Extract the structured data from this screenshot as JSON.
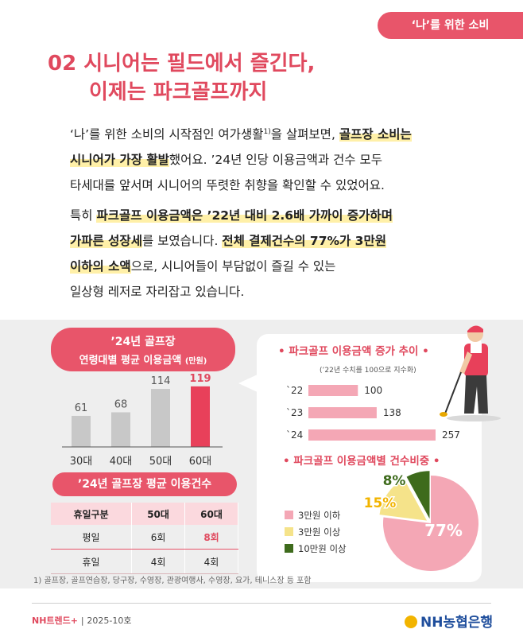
{
  "tag": "‘나’를 위한 소비",
  "title": {
    "line1": "02 시니어는 필드에서 즐긴다,",
    "line2": "이제는 파크골프까지"
  },
  "para1": {
    "a": "‘나’를 위한 소비의 시작점인 여가생활",
    "sup": "1)",
    "b": "을 살펴보면, ",
    "hl1": "골프장 소비는",
    "hl2": "시니어가 가장 활발",
    "c": "했어요. ’24년 인당 이용금액과 건수 모두",
    "d": "타세대를 앞서며 시니어의 뚜렷한 취향을 확인할 수 있었어요."
  },
  "para2": {
    "a": "특히 ",
    "hl1": "파크골프 이용금액은 ’22년 대비 2.6배 가까이 증가하며",
    "hl2": "가파른 성장세",
    "b": "를 보였습니다. ",
    "hl3": "전체 결제건수의 77%가 3만원",
    "hl4": "이하의 소액",
    "c": "으로, 시니어들이 부담없이 즐길 수 있는",
    "d": "일상형 레저로 자리잡고 있습니다."
  },
  "left_chart_title": {
    "line1": "’24년 골프장",
    "line2": "연령대별 평균 이용금액",
    "unit": "(만원)"
  },
  "chart_data": [
    {
      "type": "bar",
      "categories": [
        "30대",
        "40대",
        "50대",
        "60대"
      ],
      "values": [
        61,
        68,
        114,
        119
      ],
      "title": "’24년 골프장 연령대별 평균 이용금액 (만원)",
      "ylim": [
        0,
        125
      ],
      "colors": [
        "#c8c8c8",
        "#c8c8c8",
        "#c8c8c8",
        "#e8405a"
      ]
    },
    {
      "type": "bar",
      "orientation": "horizontal",
      "categories": [
        "`22",
        "`23",
        "`24"
      ],
      "values": [
        100,
        138,
        257
      ],
      "title": "파크골프 이용금액 증가 추이",
      "subtitle": "(’22년 수치를 100으로 지수화)",
      "color": "#f4a7b5",
      "xlim": [
        0,
        257
      ]
    },
    {
      "type": "pie",
      "title": "파크골프 이용금액별 건수비중",
      "labels": [
        "3만원 이하",
        "3만원 이상",
        "10만원 이상"
      ],
      "values": [
        77,
        15,
        8
      ],
      "value_labels": [
        "77%",
        "15%",
        "8%"
      ],
      "colors": [
        "#f4a7b5",
        "#f5e38a",
        "#3e6b1c"
      ]
    }
  ],
  "usage_table": {
    "title": "’24년 골프장 평균 이용건수",
    "headers": [
      "휴일구분",
      "50대",
      "60대"
    ],
    "rows": [
      [
        "평일",
        "6회",
        "8회"
      ],
      [
        "휴일",
        "4회",
        "4회"
      ]
    ]
  },
  "right": {
    "h1": "• 파크골프 이용금액 증가 추이 •",
    "h2": "• 파크골프 이용금액별 건수비중 •"
  },
  "footnote": "1) 골프장, 골프연습장, 당구장, 수영장, 관광여행사, 수영장, 요가, 테니스장 등 포함",
  "footer": {
    "brand": "NH트렌드+",
    "sep": "|",
    "date": "2025-10호",
    "bank": "NH농협은행"
  }
}
